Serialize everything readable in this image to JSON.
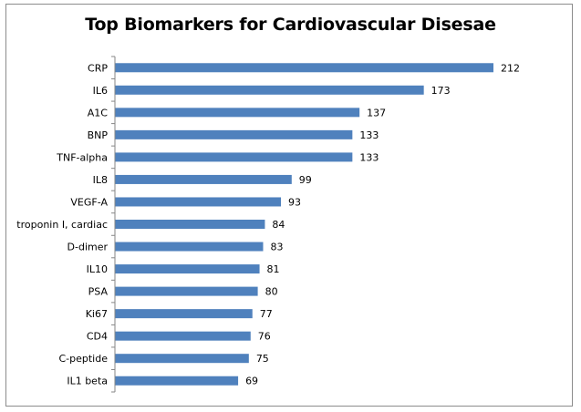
{
  "chart_data": {
    "type": "bar",
    "orientation": "horizontal",
    "title": "Top Biomarkers for Cardiovascular Disesae",
    "xlabel": "",
    "ylabel": "",
    "categories": [
      "CRP",
      "IL6",
      "A1C",
      "BNP",
      "TNF-alpha",
      "IL8",
      "VEGF-A",
      "troponin I, cardiac",
      "D-dimer",
      "IL10",
      "PSA",
      "Ki67",
      "CD4",
      "C-peptide",
      "IL1 beta"
    ],
    "values": [
      212,
      173,
      137,
      133,
      133,
      99,
      93,
      84,
      83,
      81,
      80,
      77,
      76,
      75,
      69
    ],
    "xlim": [
      0,
      212
    ],
    "grid": false,
    "legend": "none",
    "data_labels": true,
    "bar_color": "#4f81bd",
    "axis_color": "#868686"
  }
}
